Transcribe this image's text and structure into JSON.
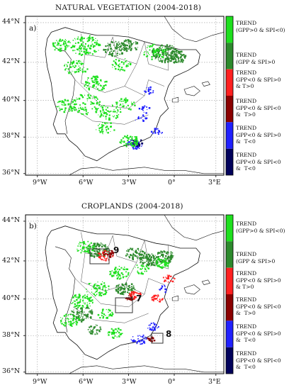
{
  "panels": [
    {
      "letter": "a)",
      "title": "NATURAL VEGETATION (2004-2018)"
    },
    {
      "letter": "b)",
      "title": "CROPLANDS (2004-2018)",
      "boxes": [
        {
          "label": "9"
        },
        {
          "label": "7"
        },
        {
          "label": "8"
        }
      ]
    }
  ],
  "axes": {
    "lat_ticks": [
      "44°N",
      "42°N",
      "40°N",
      "38°N",
      "36°N"
    ],
    "lon_ticks": [
      "9°W",
      "6°W",
      "3°W",
      "0°",
      "3°E"
    ]
  },
  "legend": {
    "colors": [
      "#1ee01e",
      "#2d8a2d",
      "#ff2020",
      "#8a0000",
      "#2020ff",
      "#00005a"
    ],
    "entries": [
      {
        "label": "TREND\n(GPP>0 & SPI<0)"
      },
      {
        "label": "TREND\n(GPP & SPI>0"
      },
      {
        "label": "TREND\nGPP<0 & SPI>0\n& T>0"
      },
      {
        "label": "TREND\nGPP<0 & SPI<0\n&  T>0"
      },
      {
        "label": "TREND\nGPP<0 & SPI>0\n&  T<0"
      },
      {
        "label": "TREND\nGPP<0 & SPI<0\n&  T<0"
      }
    ]
  }
}
